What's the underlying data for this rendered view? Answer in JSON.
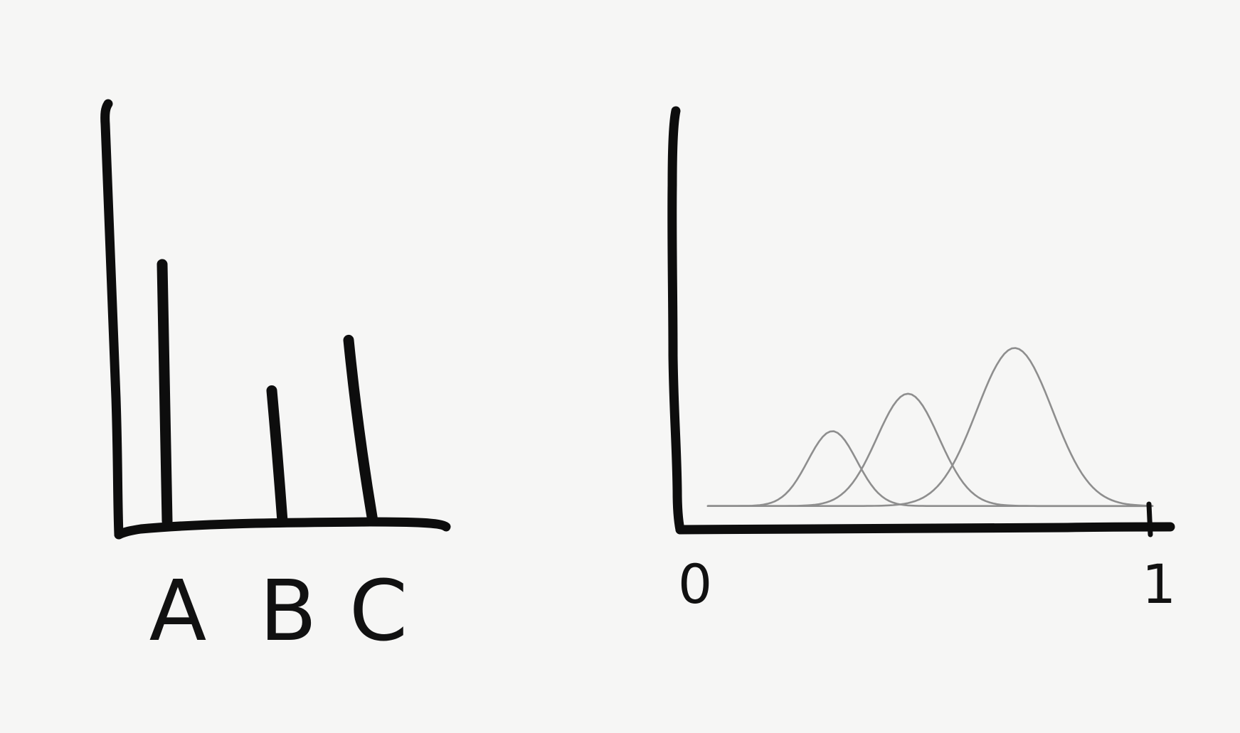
{
  "chart_data": [
    {
      "type": "bar",
      "categories": [
        "A",
        "B",
        "C"
      ],
      "values": [
        61,
        31,
        43
      ],
      "title": "",
      "xlabel": "",
      "ylabel": "",
      "ylim": [
        0,
        100
      ],
      "grid": false,
      "legend": "none",
      "style": "hand-drawn",
      "colors": {
        "ink": "#0d0d0d"
      }
    },
    {
      "type": "line",
      "xlim": [
        0,
        1
      ],
      "x_tick_labels": [
        "0",
        "1"
      ],
      "title": "",
      "xlabel": "",
      "ylabel": "",
      "ylim": [
        0,
        100
      ],
      "grid": false,
      "legend": "none",
      "style": "hand-drawn density curves",
      "series": [
        {
          "mean": 0.28,
          "sd": 0.055,
          "peak": 18,
          "baseline": 5
        },
        {
          "mean": 0.45,
          "sd": 0.07,
          "peak": 27,
          "baseline": 5
        },
        {
          "mean": 0.69,
          "sd": 0.085,
          "peak": 38,
          "baseline": 5
        }
      ],
      "colors": {
        "ink": "#0d0d0d",
        "curve": "#8e8e8e"
      }
    }
  ]
}
